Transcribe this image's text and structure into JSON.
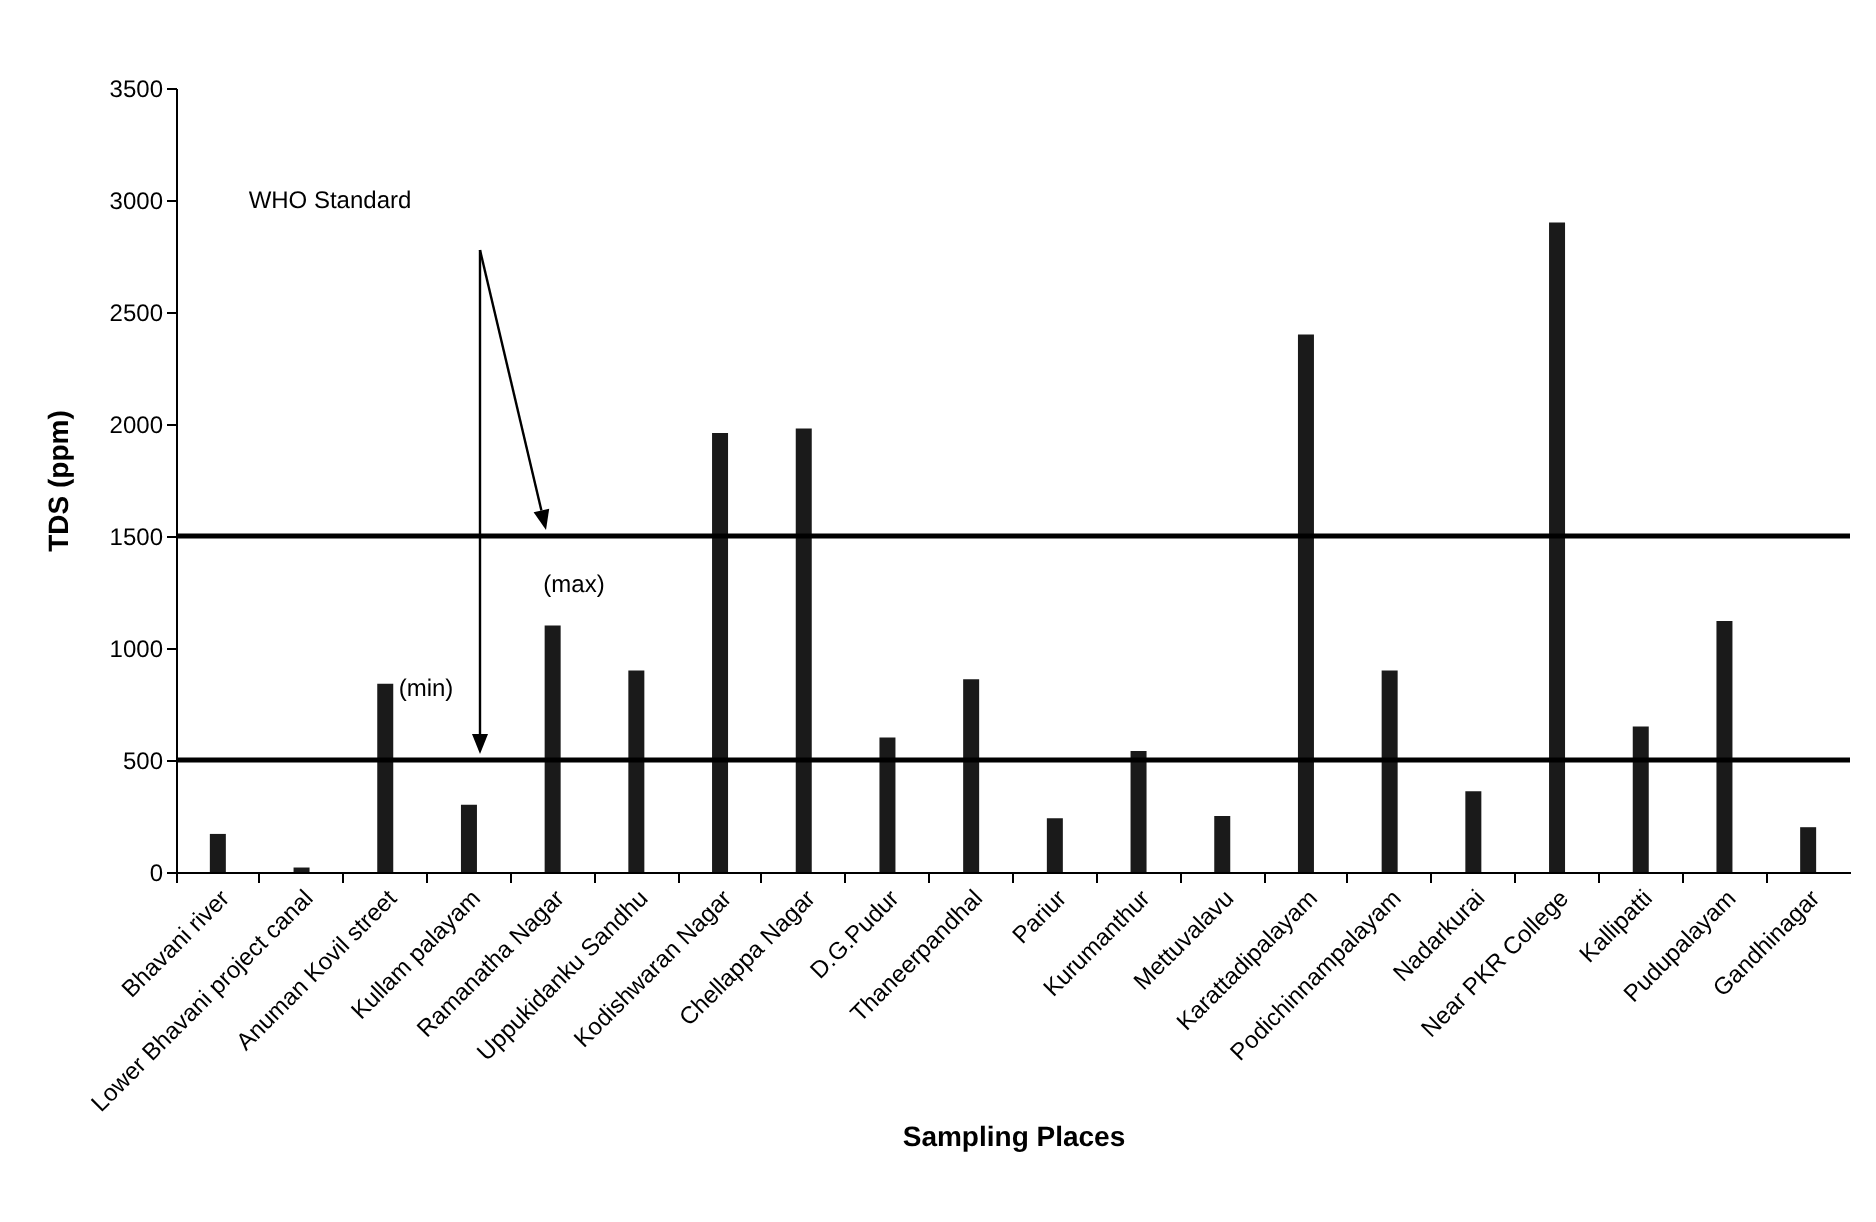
{
  "chart_data": {
    "type": "bar",
    "xlabel": "Sampling Places",
    "ylabel": "TDS (ppm)",
    "categories": [
      "Bhavani river",
      "Lower Bhavani project canal",
      "Anuman Kovil street",
      "Kullam palayam",
      "Ramanatha Nagar",
      "Uppukidanku Sandhu",
      "Kodishwaran Nagar",
      "Chellappa Nagar",
      "D.G.Pudur",
      "Thaneerpandhal",
      "Pariur",
      "Kurumanthur",
      "Mettuvalavu",
      "Karattadipalayam",
      "Podichinnampalayam",
      "Nadarkurai",
      "Near PKR College",
      "Kallipatti",
      "Pudupalayam",
      "Gandhinagar"
    ],
    "values": [
      170,
      20,
      840,
      300,
      1100,
      900,
      1960,
      1980,
      600,
      860,
      240,
      540,
      250,
      2400,
      900,
      360,
      2900,
      650,
      1120,
      200
    ],
    "color": "#1a1a1a",
    "ylim": [
      0,
      3500
    ],
    "yticks": [
      0,
      500,
      1000,
      1500,
      2000,
      2500,
      3000,
      3500
    ],
    "ref_lines": [
      {
        "axis": "y",
        "value": 1500,
        "label": "(max)",
        "color": "#000000"
      },
      {
        "axis": "y",
        "value": 500,
        "label": "(min)",
        "color": "#000000"
      }
    ],
    "annotations": [
      "WHO Standard"
    ]
  }
}
